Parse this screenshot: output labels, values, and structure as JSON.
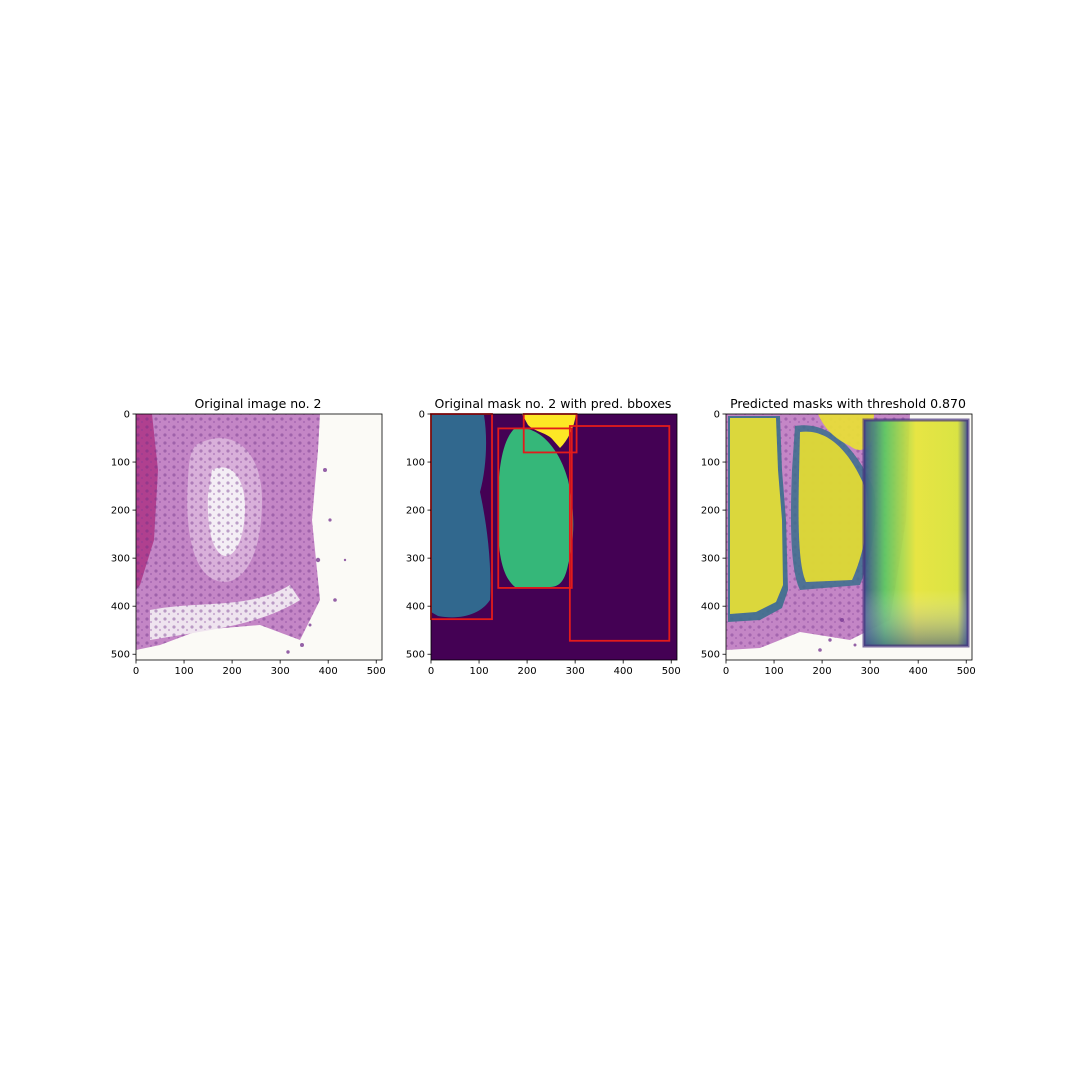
{
  "figure": {
    "panels": [
      {
        "id": "original",
        "title": "Original image no. 2"
      },
      {
        "id": "mask",
        "title": "Original mask no. 2 with pred. bboxes"
      },
      {
        "id": "pred",
        "title": "Predicted masks with threshold 0.870"
      }
    ],
    "x_ticks": [
      "0",
      "100",
      "200",
      "300",
      "400",
      "500"
    ],
    "y_ticks": [
      "0",
      "100",
      "200",
      "300",
      "400",
      "500"
    ],
    "image_extent": [
      0,
      512
    ],
    "colors": {
      "tissue_pink": "#c27ac0",
      "background_white": "#fbfaf6",
      "mask_bg": "#440154",
      "mask_blue": "#31688e",
      "mask_green": "#35b779",
      "mask_yellow": "#fde725",
      "bbox_red": "#e21b1b"
    },
    "pred_bboxes": [
      {
        "x0": 0,
        "y0": 0,
        "x1": 127,
        "y1": 427
      },
      {
        "x0": 140,
        "y0": 30,
        "x1": 293,
        "y1": 362
      },
      {
        "x0": 193,
        "y0": 0,
        "x1": 303,
        "y1": 80
      },
      {
        "x0": 289,
        "y0": 25,
        "x1": 496,
        "y1": 472
      }
    ]
  }
}
